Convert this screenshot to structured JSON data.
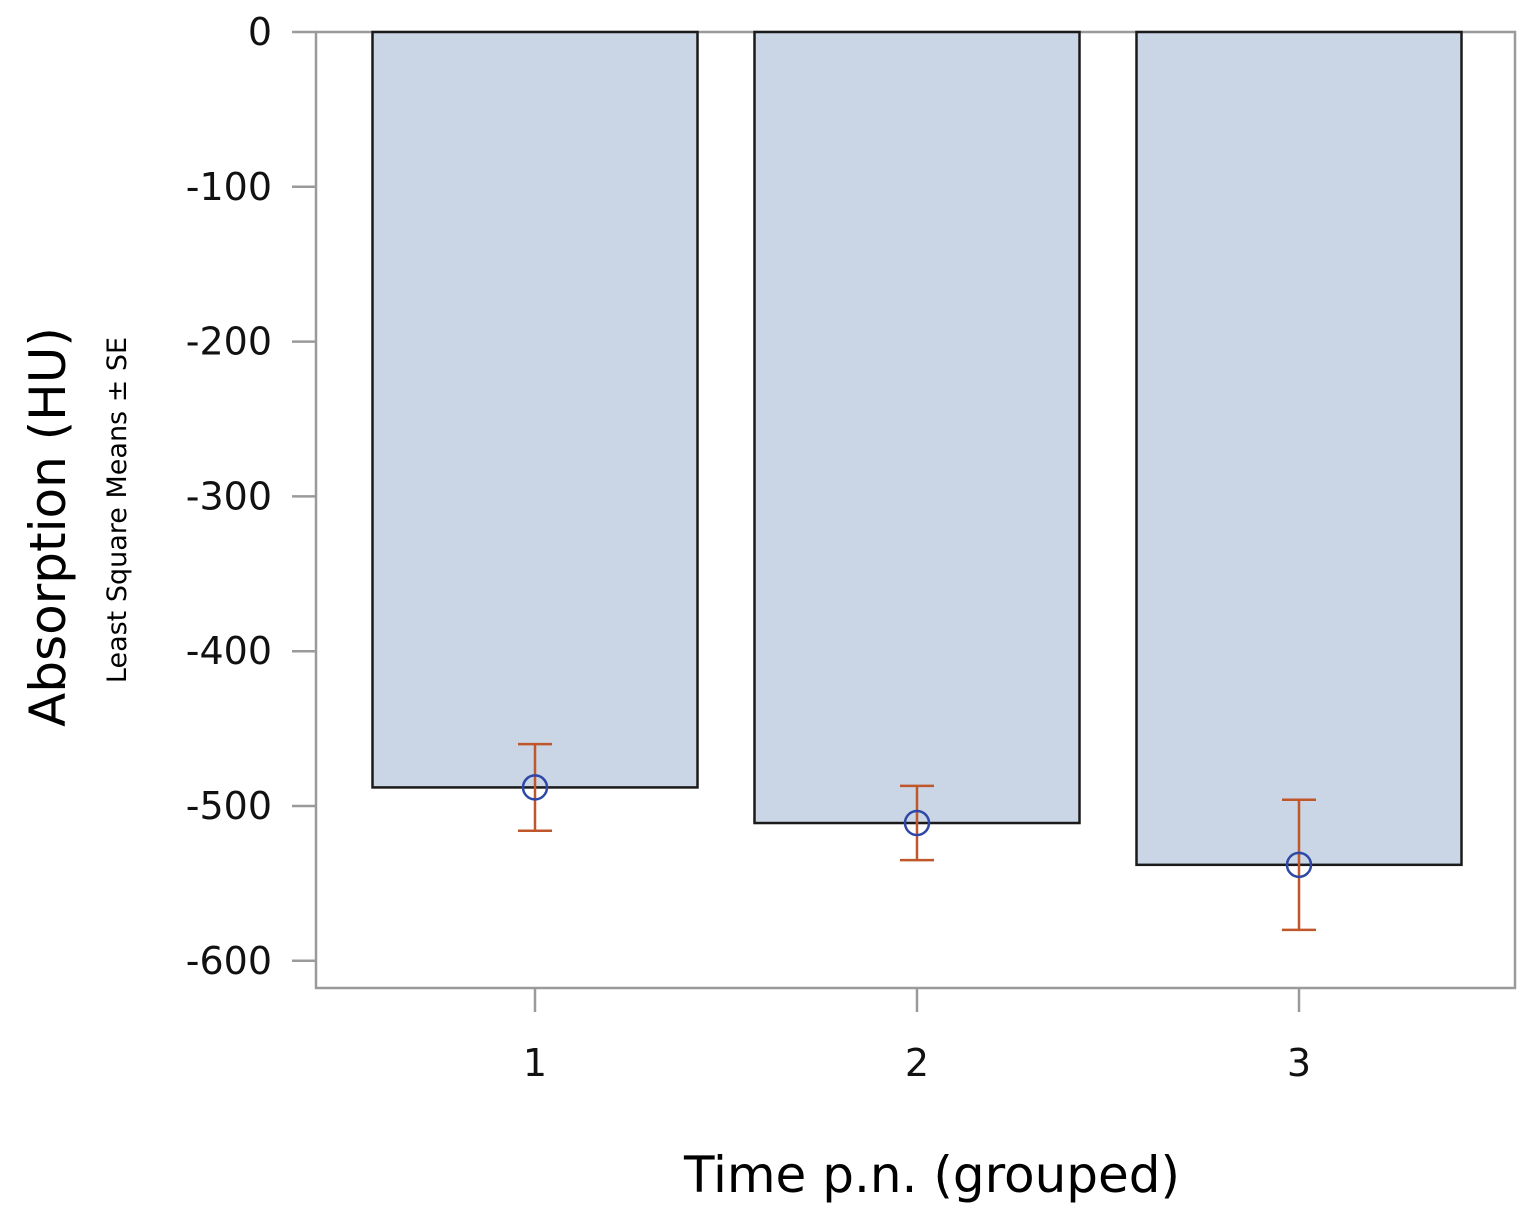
{
  "chart_data": {
    "type": "bar",
    "title": "",
    "xlabel": "Time p.n. (grouped)",
    "ylabel": "Absorption (HU)",
    "ylabel_sub": "Least Square Means ± SE",
    "categories": [
      "1",
      "2",
      "3"
    ],
    "values": [
      -488,
      -511,
      -538
    ],
    "error_low": [
      -516,
      -535,
      -580
    ],
    "error_high": [
      -460,
      -487,
      -496
    ],
    "ylim": [
      -620,
      0
    ],
    "yticks": [
      0,
      -100,
      -200,
      -300,
      -400,
      -500,
      -600
    ],
    "ytick_labels": [
      "0",
      "-100",
      "-200",
      "-300",
      "-400",
      "-500",
      "-600"
    ],
    "grid": false,
    "colors": {
      "bar_fill": "#cad6e6",
      "bar_stroke": "#1a1a1a",
      "marker": "#2f48a8",
      "error_bar": "#c0572a",
      "axis": "#9a9a9a"
    }
  }
}
